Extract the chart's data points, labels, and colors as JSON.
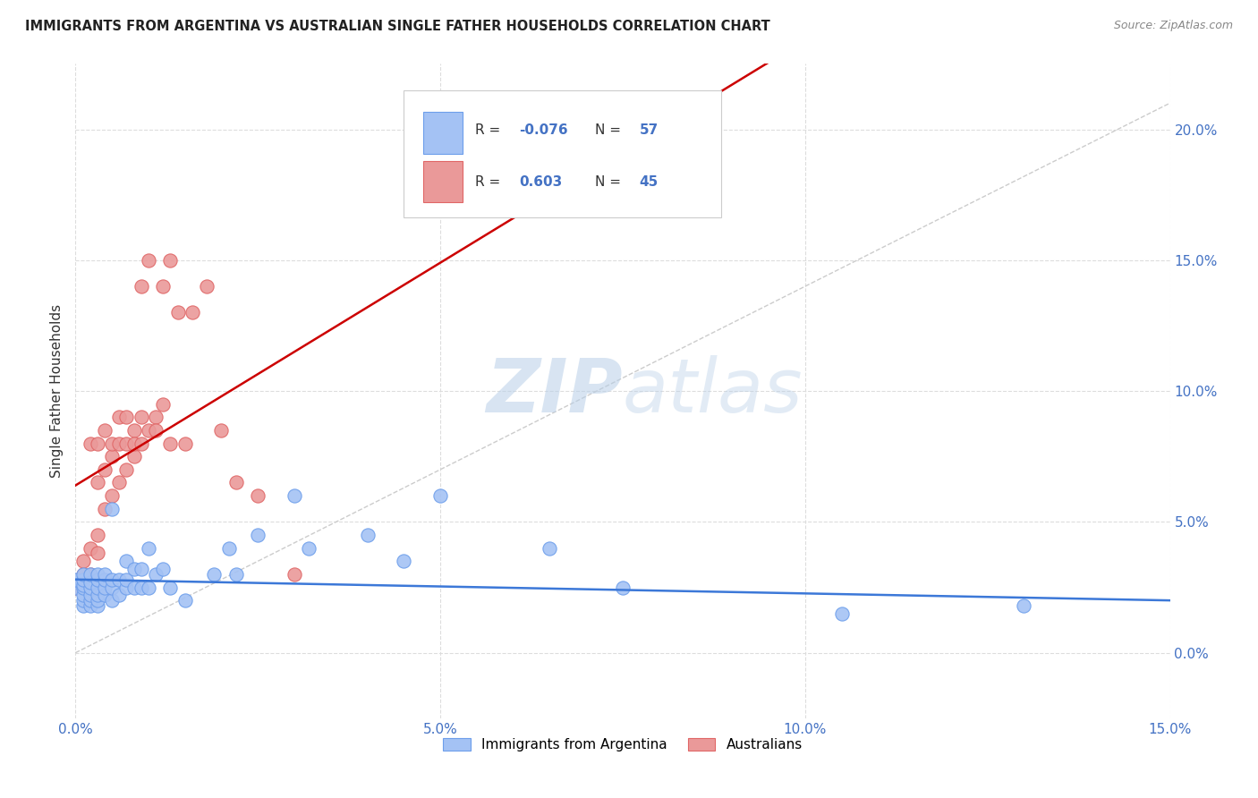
{
  "title": "IMMIGRANTS FROM ARGENTINA VS AUSTRALIAN SINGLE FATHER HOUSEHOLDS CORRELATION CHART",
  "source": "Source: ZipAtlas.com",
  "ylabel": "Single Father Households",
  "legend_label1": "Immigrants from Argentina",
  "legend_label2": "Australians",
  "r1": "-0.076",
  "n1": "57",
  "r2": "0.603",
  "n2": "45",
  "color_blue_fill": "#a4c2f4",
  "color_blue_edge": "#6d9eeb",
  "color_pink_fill": "#ea9999",
  "color_pink_edge": "#e06666",
  "color_blue_line": "#3c78d8",
  "color_pink_line": "#cc0000",
  "watermark_color": "#cfe2f3",
  "xlim": [
    0.0,
    0.15
  ],
  "ylim": [
    -0.025,
    0.225
  ],
  "yticks": [
    0.0,
    0.05,
    0.1,
    0.15,
    0.2
  ],
  "ytick_labels": [
    "0.0%",
    "5.0%",
    "10.0%",
    "15.0%",
    "20.0%"
  ],
  "xticks": [
    0.0,
    0.05,
    0.1,
    0.15
  ],
  "xtick_labels": [
    "0.0%",
    "5.0%",
    "10.0%",
    "15.0%"
  ],
  "argentina_x": [
    0.0,
    0.0,
    0.001,
    0.001,
    0.001,
    0.001,
    0.001,
    0.001,
    0.001,
    0.002,
    0.002,
    0.002,
    0.002,
    0.002,
    0.002,
    0.003,
    0.003,
    0.003,
    0.003,
    0.003,
    0.003,
    0.004,
    0.004,
    0.004,
    0.004,
    0.005,
    0.005,
    0.005,
    0.005,
    0.006,
    0.006,
    0.007,
    0.007,
    0.007,
    0.008,
    0.008,
    0.009,
    0.009,
    0.01,
    0.01,
    0.011,
    0.012,
    0.013,
    0.015,
    0.019,
    0.021,
    0.022,
    0.025,
    0.03,
    0.032,
    0.04,
    0.045,
    0.05,
    0.065,
    0.075,
    0.105,
    0.13
  ],
  "argentina_y": [
    0.025,
    0.028,
    0.018,
    0.02,
    0.022,
    0.025,
    0.026,
    0.028,
    0.03,
    0.018,
    0.02,
    0.022,
    0.025,
    0.027,
    0.03,
    0.018,
    0.02,
    0.022,
    0.025,
    0.028,
    0.03,
    0.022,
    0.025,
    0.028,
    0.03,
    0.02,
    0.025,
    0.028,
    0.055,
    0.022,
    0.028,
    0.025,
    0.028,
    0.035,
    0.025,
    0.032,
    0.025,
    0.032,
    0.025,
    0.04,
    0.03,
    0.032,
    0.025,
    0.02,
    0.03,
    0.04,
    0.03,
    0.045,
    0.06,
    0.04,
    0.045,
    0.035,
    0.06,
    0.04,
    0.025,
    0.015,
    0.018
  ],
  "australian_x": [
    0.0,
    0.001,
    0.001,
    0.001,
    0.002,
    0.002,
    0.002,
    0.003,
    0.003,
    0.003,
    0.003,
    0.004,
    0.004,
    0.004,
    0.005,
    0.005,
    0.005,
    0.006,
    0.006,
    0.006,
    0.007,
    0.007,
    0.007,
    0.008,
    0.008,
    0.008,
    0.009,
    0.009,
    0.009,
    0.01,
    0.01,
    0.011,
    0.011,
    0.012,
    0.012,
    0.013,
    0.013,
    0.014,
    0.015,
    0.016,
    0.018,
    0.02,
    0.022,
    0.025,
    0.03
  ],
  "australian_y": [
    0.025,
    0.03,
    0.035,
    0.028,
    0.03,
    0.04,
    0.08,
    0.038,
    0.045,
    0.065,
    0.08,
    0.055,
    0.07,
    0.085,
    0.06,
    0.075,
    0.08,
    0.065,
    0.08,
    0.09,
    0.07,
    0.08,
    0.09,
    0.075,
    0.085,
    0.08,
    0.08,
    0.09,
    0.14,
    0.085,
    0.15,
    0.09,
    0.085,
    0.095,
    0.14,
    0.08,
    0.15,
    0.13,
    0.08,
    0.13,
    0.14,
    0.085,
    0.065,
    0.06,
    0.03
  ]
}
